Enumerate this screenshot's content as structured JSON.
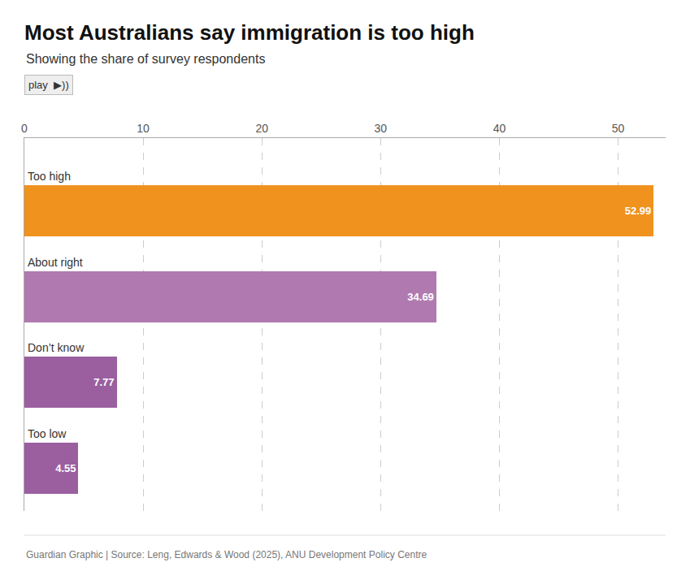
{
  "chart_data": {
    "type": "bar",
    "orientation": "horizontal",
    "title": "Most Australians say immigration is too high",
    "subtitle": "Showing the share of survey respondents",
    "annotations": [
      "play",
      "▶))"
    ],
    "footer": "Guardian Graphic | Source: Leng, Edwards & Wood (2025), ANU Development Policy Centre",
    "categories": [
      "Too high",
      "About right",
      "Don’t know",
      "Too low"
    ],
    "values": [
      52.99,
      34.69,
      7.77,
      4.55
    ],
    "colors": [
      "#f0921e",
      "#b07ab0",
      "#9b5fa0",
      "#9b5fa0"
    ],
    "xlim": [
      0,
      54
    ],
    "xticks": [
      0,
      10,
      20,
      30,
      40,
      50
    ],
    "grid": true,
    "data_labels": true,
    "tick_labels": "x"
  }
}
